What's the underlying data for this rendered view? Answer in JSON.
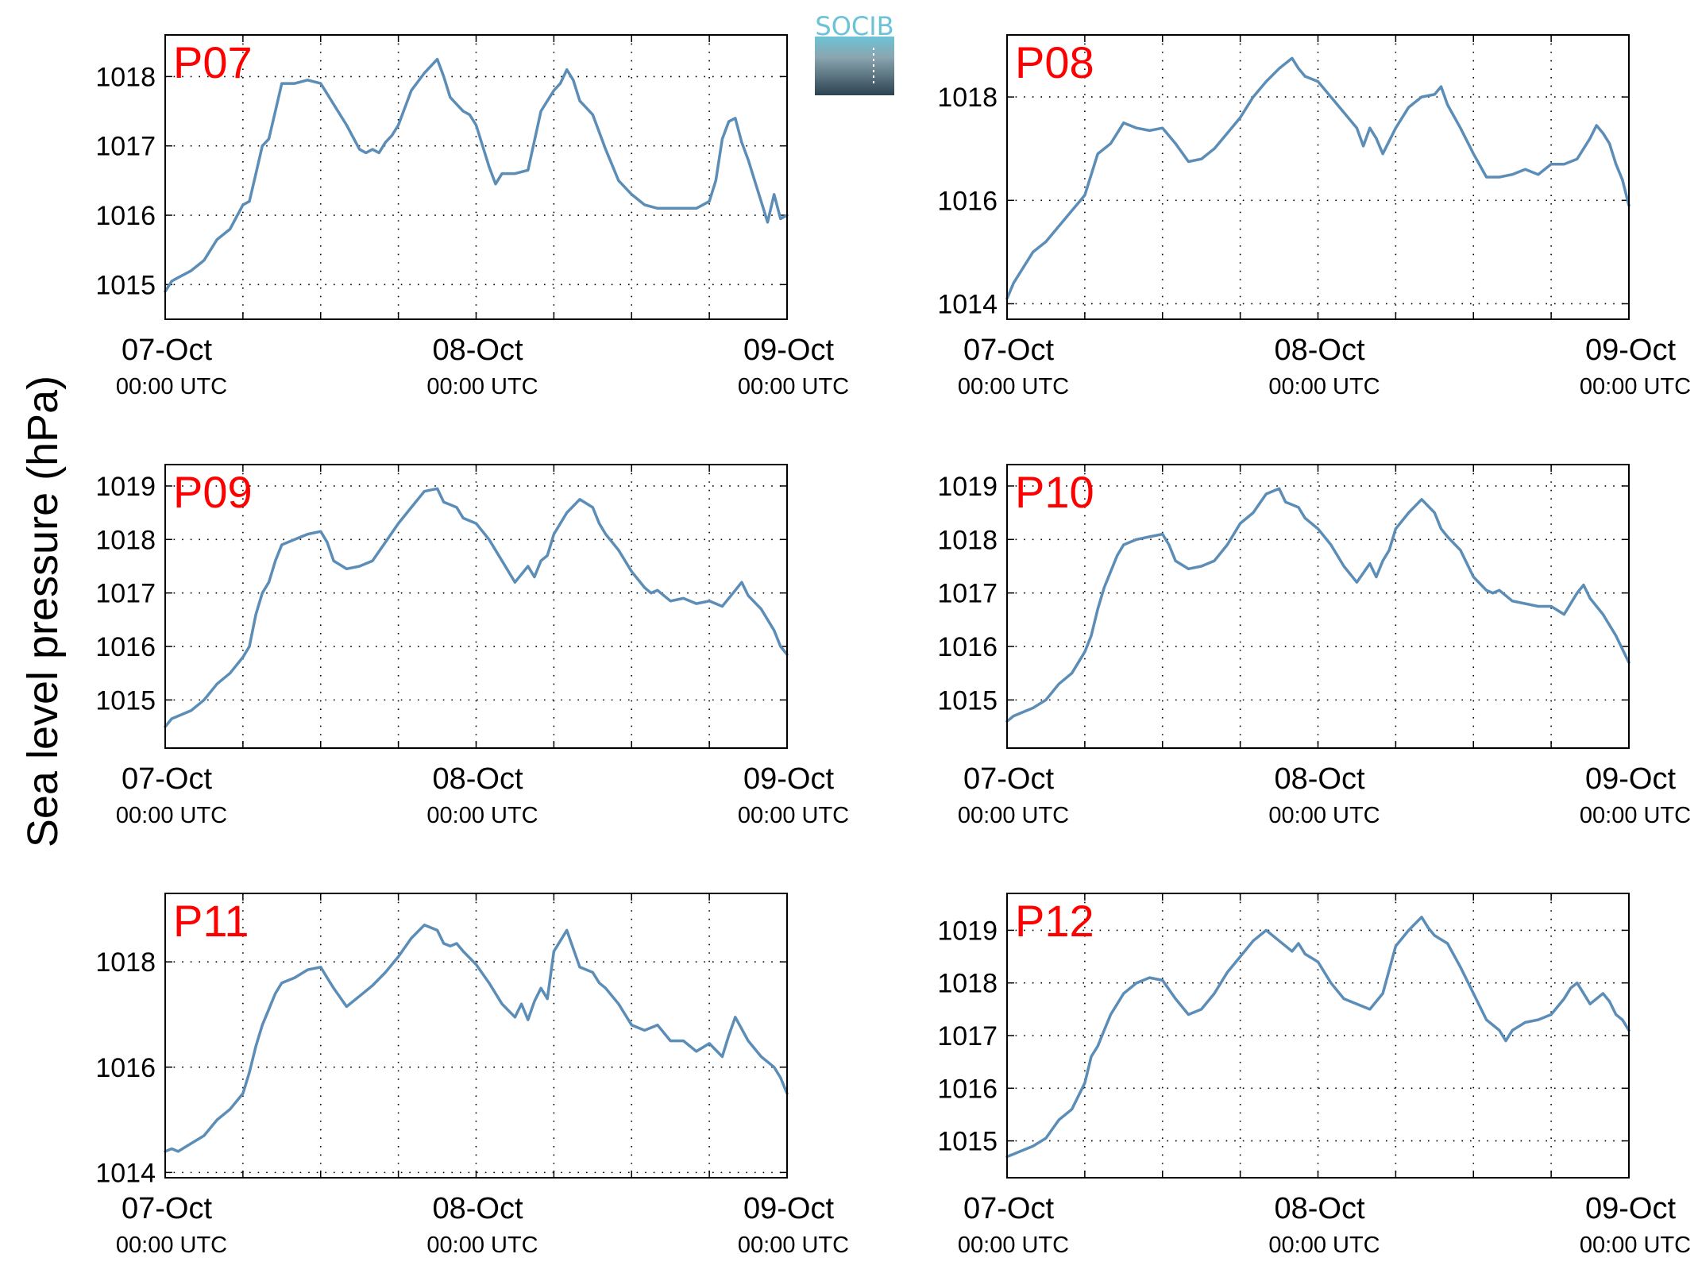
{
  "ylabel": "Sea level pressure (hPa)",
  "logo": {
    "text": "SOCIB"
  },
  "colors": {
    "line": "#5b8db6",
    "title": "#ff0000",
    "axis": "#000000",
    "grid": "#000000",
    "logo_top": "#6cc3d6",
    "logo_bottom": "#2c4250"
  },
  "chart_data": [
    {
      "type": "line",
      "title": "P07",
      "ylim": [
        1014.5,
        1018.6
      ],
      "yticks": [
        1015,
        1016,
        1017,
        1018
      ],
      "xlim": [
        0,
        48
      ],
      "xticks": [
        {
          "x": 0,
          "date": "07-Oct",
          "time": "00:00 UTC"
        },
        {
          "x": 24,
          "date": "08-Oct",
          "time": "00:00 UTC"
        },
        {
          "x": 48,
          "date": "09-Oct",
          "time": "00:00 UTC"
        }
      ],
      "xgrid": [
        6,
        12,
        18,
        24,
        30,
        36,
        42
      ],
      "x": [
        0,
        0.5,
        1,
        2,
        3,
        4,
        5,
        6,
        6.5,
        7,
        7.5,
        8,
        8.5,
        9,
        10,
        11,
        12,
        13,
        14,
        15,
        15.5,
        16,
        16.5,
        17,
        17.5,
        18,
        19,
        20,
        21,
        21.5,
        22,
        22.5,
        23,
        23.5,
        24,
        25,
        25.5,
        26,
        27,
        28,
        29,
        30,
        30.5,
        31,
        31.5,
        32,
        32.5,
        33,
        34,
        35,
        36,
        37,
        38,
        39,
        40,
        41,
        42,
        42.5,
        43,
        43.5,
        44,
        44.5,
        45,
        45.5,
        46,
        46.5,
        47,
        47.5,
        48
      ],
      "values": [
        1014.9,
        1015.05,
        1015.1,
        1015.2,
        1015.35,
        1015.65,
        1015.8,
        1016.15,
        1016.2,
        1016.6,
        1017.0,
        1017.1,
        1017.5,
        1017.9,
        1017.9,
        1017.95,
        1017.9,
        1017.6,
        1017.3,
        1016.95,
        1016.9,
        1016.95,
        1016.9,
        1017.05,
        1017.15,
        1017.3,
        1017.8,
        1018.05,
        1018.25,
        1018.0,
        1017.7,
        1017.6,
        1017.5,
        1017.45,
        1017.3,
        1016.7,
        1016.45,
        1016.6,
        1016.6,
        1016.65,
        1017.5,
        1017.8,
        1017.9,
        1018.1,
        1017.95,
        1017.65,
        1017.55,
        1017.45,
        1016.95,
        1016.5,
        1016.3,
        1016.15,
        1016.1,
        1016.1,
        1016.1,
        1016.1,
        1016.2,
        1016.5,
        1017.1,
        1017.35,
        1017.4,
        1017.05,
        1016.8,
        1016.5,
        1016.2,
        1015.9,
        1016.3,
        1015.95,
        1016.0
      ]
    },
    {
      "type": "line",
      "title": "P08",
      "ylim": [
        1013.7,
        1019.2
      ],
      "yticks": [
        1014,
        1016,
        1018
      ],
      "xlim": [
        0,
        48
      ],
      "xticks": [
        {
          "x": 0,
          "date": "07-Oct",
          "time": "00:00 UTC"
        },
        {
          "x": 24,
          "date": "08-Oct",
          "time": "00:00 UTC"
        },
        {
          "x": 48,
          "date": "09-Oct",
          "time": "00:00 UTC"
        }
      ],
      "xgrid": [
        6,
        12,
        18,
        24,
        30,
        36,
        42
      ],
      "x": [
        0,
        0.5,
        1,
        2,
        3,
        4,
        5,
        6,
        7,
        8,
        8.5,
        9,
        10,
        11,
        12,
        13,
        14,
        15,
        16,
        17,
        18,
        19,
        20,
        21,
        22,
        22.5,
        23,
        24,
        25,
        26,
        27,
        27.5,
        28,
        28.5,
        29,
        30,
        31,
        32,
        33,
        33.5,
        34,
        35,
        36,
        37,
        38,
        39,
        40,
        41,
        42,
        43,
        44,
        45,
        45.5,
        46,
        46.5,
        47,
        47.5,
        48
      ],
      "values": [
        1014.1,
        1014.4,
        1014.6,
        1015.0,
        1015.2,
        1015.5,
        1015.8,
        1016.1,
        1016.9,
        1017.1,
        1017.3,
        1017.5,
        1017.4,
        1017.35,
        1017.4,
        1017.1,
        1016.75,
        1016.8,
        1017.0,
        1017.3,
        1017.6,
        1018.0,
        1018.3,
        1018.55,
        1018.75,
        1018.55,
        1018.4,
        1018.3,
        1018.0,
        1017.7,
        1017.4,
        1017.05,
        1017.4,
        1017.2,
        1016.9,
        1017.4,
        1017.8,
        1018.0,
        1018.05,
        1018.2,
        1017.85,
        1017.4,
        1016.9,
        1016.45,
        1016.45,
        1016.5,
        1016.6,
        1016.5,
        1016.7,
        1016.7,
        1016.8,
        1017.2,
        1017.45,
        1017.3,
        1017.1,
        1016.7,
        1016.4,
        1015.9
      ]
    },
    {
      "type": "line",
      "title": "P09",
      "ylim": [
        1014.1,
        1019.4
      ],
      "yticks": [
        1015,
        1016,
        1017,
        1018,
        1019
      ],
      "xlim": [
        0,
        48
      ],
      "xticks": [
        {
          "x": 0,
          "date": "07-Oct",
          "time": "00:00 UTC"
        },
        {
          "x": 24,
          "date": "08-Oct",
          "time": "00:00 UTC"
        },
        {
          "x": 48,
          "date": "09-Oct",
          "time": "00:00 UTC"
        }
      ],
      "xgrid": [
        6,
        12,
        18,
        24,
        30,
        36,
        42
      ],
      "x": [
        0,
        0.5,
        1,
        2,
        3,
        4,
        5,
        6,
        6.5,
        7,
        7.5,
        8,
        8.5,
        9,
        10,
        11,
        12,
        12.5,
        13,
        14,
        15,
        16,
        17,
        18,
        19,
        20,
        21,
        21.5,
        22,
        22.5,
        23,
        24,
        25,
        26,
        27,
        28,
        28.5,
        29,
        29.5,
        30,
        31,
        32,
        33,
        33.5,
        34,
        35,
        36,
        37,
        37.5,
        38,
        39,
        40,
        41,
        42,
        43,
        44,
        44.5,
        45,
        46,
        47,
        47.5,
        48
      ],
      "values": [
        1014.5,
        1014.65,
        1014.7,
        1014.8,
        1015.0,
        1015.3,
        1015.5,
        1015.8,
        1016.0,
        1016.6,
        1017.0,
        1017.2,
        1017.6,
        1017.9,
        1018.0,
        1018.1,
        1018.15,
        1017.95,
        1017.6,
        1017.45,
        1017.5,
        1017.6,
        1017.95,
        1018.3,
        1018.6,
        1018.9,
        1018.95,
        1018.7,
        1018.65,
        1018.6,
        1018.4,
        1018.3,
        1018.0,
        1017.6,
        1017.2,
        1017.5,
        1017.3,
        1017.6,
        1017.7,
        1018.1,
        1018.5,
        1018.75,
        1018.6,
        1018.3,
        1018.1,
        1017.8,
        1017.4,
        1017.1,
        1017.0,
        1017.05,
        1016.85,
        1016.9,
        1016.8,
        1016.85,
        1016.75,
        1017.05,
        1017.2,
        1016.95,
        1016.7,
        1016.3,
        1016.0,
        1015.85
      ]
    },
    {
      "type": "line",
      "title": "P10",
      "ylim": [
        1014.1,
        1019.4
      ],
      "yticks": [
        1015,
        1016,
        1017,
        1018,
        1019
      ],
      "xlim": [
        0,
        48
      ],
      "xticks": [
        {
          "x": 0,
          "date": "07-Oct",
          "time": "00:00 UTC"
        },
        {
          "x": 24,
          "date": "08-Oct",
          "time": "00:00 UTC"
        },
        {
          "x": 48,
          "date": "09-Oct",
          "time": "00:00 UTC"
        }
      ],
      "xgrid": [
        6,
        12,
        18,
        24,
        30,
        36,
        42
      ],
      "x": [
        0,
        0.5,
        1,
        2,
        3,
        4,
        5,
        6,
        6.5,
        7,
        7.5,
        8,
        8.5,
        9,
        10,
        11,
        12,
        12.5,
        13,
        14,
        15,
        16,
        17,
        18,
        19,
        20,
        21,
        21.5,
        22,
        22.5,
        23,
        24,
        25,
        26,
        27,
        28,
        28.5,
        29,
        29.5,
        30,
        31,
        32,
        33,
        33.5,
        34,
        35,
        36,
        37,
        37.5,
        38,
        39,
        40,
        41,
        42,
        43,
        44,
        44.5,
        45,
        46,
        47,
        47.5,
        48
      ],
      "values": [
        1014.6,
        1014.7,
        1014.75,
        1014.85,
        1015.0,
        1015.3,
        1015.5,
        1015.9,
        1016.2,
        1016.7,
        1017.1,
        1017.4,
        1017.7,
        1017.9,
        1018.0,
        1018.05,
        1018.1,
        1017.9,
        1017.6,
        1017.45,
        1017.5,
        1017.6,
        1017.9,
        1018.3,
        1018.5,
        1018.85,
        1018.95,
        1018.7,
        1018.65,
        1018.6,
        1018.4,
        1018.2,
        1017.9,
        1017.5,
        1017.2,
        1017.55,
        1017.3,
        1017.6,
        1017.8,
        1018.2,
        1018.5,
        1018.75,
        1018.5,
        1018.2,
        1018.05,
        1017.8,
        1017.3,
        1017.05,
        1017.0,
        1017.05,
        1016.85,
        1016.8,
        1016.75,
        1016.75,
        1016.6,
        1017.0,
        1017.15,
        1016.9,
        1016.6,
        1016.2,
        1015.95,
        1015.7
      ]
    },
    {
      "type": "line",
      "title": "P11",
      "ylim": [
        1013.9,
        1019.3
      ],
      "yticks": [
        1014,
        1016,
        1018
      ],
      "xlim": [
        0,
        48
      ],
      "xticks": [
        {
          "x": 0,
          "date": "07-Oct",
          "time": "00:00 UTC"
        },
        {
          "x": 24,
          "date": "08-Oct",
          "time": "00:00 UTC"
        },
        {
          "x": 48,
          "date": "09-Oct",
          "time": "00:00 UTC"
        }
      ],
      "xgrid": [
        6,
        12,
        18,
        24,
        30,
        36,
        42
      ],
      "x": [
        0,
        0.5,
        1,
        2,
        3,
        4,
        5,
        6,
        6.5,
        7,
        7.5,
        8,
        8.5,
        9,
        10,
        11,
        12,
        12.5,
        13,
        14,
        15,
        16,
        17,
        18,
        19,
        20,
        21,
        21.5,
        22,
        22.5,
        23,
        24,
        25,
        26,
        27,
        27.5,
        28,
        28.5,
        29,
        29.5,
        30,
        31,
        32,
        33,
        33.5,
        34,
        35,
        36,
        37,
        38,
        39,
        40,
        41,
        42,
        43,
        43.5,
        44,
        45,
        46,
        47,
        47.5,
        48
      ],
      "values": [
        1014.4,
        1014.45,
        1014.4,
        1014.55,
        1014.7,
        1015.0,
        1015.2,
        1015.5,
        1015.9,
        1016.4,
        1016.8,
        1017.1,
        1017.4,
        1017.6,
        1017.7,
        1017.85,
        1017.9,
        1017.7,
        1017.5,
        1017.15,
        1017.35,
        1017.55,
        1017.8,
        1018.1,
        1018.45,
        1018.7,
        1018.6,
        1018.35,
        1018.3,
        1018.35,
        1018.2,
        1017.95,
        1017.6,
        1017.2,
        1016.95,
        1017.2,
        1016.9,
        1017.25,
        1017.5,
        1017.3,
        1018.2,
        1018.6,
        1017.9,
        1017.8,
        1017.6,
        1017.5,
        1017.2,
        1016.8,
        1016.7,
        1016.8,
        1016.5,
        1016.5,
        1016.3,
        1016.45,
        1016.2,
        1016.6,
        1016.95,
        1016.5,
        1016.2,
        1016.0,
        1015.8,
        1015.5
      ]
    },
    {
      "type": "line",
      "title": "P12",
      "ylim": [
        1014.3,
        1019.7
      ],
      "yticks": [
        1015,
        1016,
        1017,
        1018,
        1019
      ],
      "xlim": [
        0,
        48
      ],
      "xticks": [
        {
          "x": 0,
          "date": "07-Oct",
          "time": "00:00 UTC"
        },
        {
          "x": 24,
          "date": "08-Oct",
          "time": "00:00 UTC"
        },
        {
          "x": 48,
          "date": "09-Oct",
          "time": "00:00 UTC"
        }
      ],
      "xgrid": [
        6,
        12,
        18,
        24,
        30,
        36,
        42
      ],
      "x": [
        0,
        0.5,
        1,
        2,
        3,
        4,
        5,
        6,
        6.5,
        7,
        7.5,
        8,
        8.5,
        9,
        10,
        11,
        12,
        13,
        14,
        15,
        16,
        17,
        18,
        19,
        20,
        21,
        22,
        22.5,
        23,
        24,
        25,
        26,
        27,
        28,
        29,
        30,
        31,
        32,
        32.5,
        33,
        34,
        35,
        36,
        37,
        38,
        38.5,
        39,
        40,
        41,
        42,
        43,
        43.5,
        44,
        45,
        46,
        46.5,
        47,
        47.5,
        48
      ],
      "values": [
        1014.7,
        1014.75,
        1014.8,
        1014.9,
        1015.05,
        1015.4,
        1015.6,
        1016.1,
        1016.6,
        1016.8,
        1017.1,
        1017.4,
        1017.6,
        1017.8,
        1018.0,
        1018.1,
        1018.05,
        1017.7,
        1017.4,
        1017.5,
        1017.8,
        1018.2,
        1018.5,
        1018.8,
        1019.0,
        1018.8,
        1018.6,
        1018.75,
        1018.55,
        1018.4,
        1018.0,
        1017.7,
        1017.6,
        1017.5,
        1017.8,
        1018.7,
        1019.0,
        1019.25,
        1019.05,
        1018.9,
        1018.75,
        1018.3,
        1017.8,
        1017.3,
        1017.1,
        1016.9,
        1017.1,
        1017.25,
        1017.3,
        1017.4,
        1017.7,
        1017.9,
        1018.0,
        1017.6,
        1017.8,
        1017.65,
        1017.4,
        1017.3,
        1017.1
      ]
    }
  ]
}
